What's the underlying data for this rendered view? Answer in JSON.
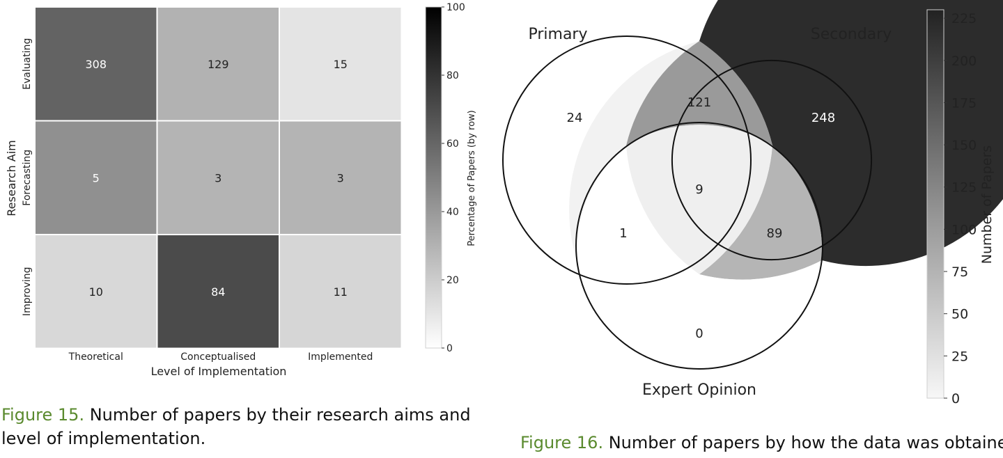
{
  "chart_data": [
    {
      "type": "heatmap",
      "xlabel": "Level of Implementation",
      "ylabel": "Research Aim",
      "x_categories": [
        "Theoretical",
        "Conceptualised",
        "Implemented"
      ],
      "y_categories": [
        "Evaluating",
        "Forecasting",
        "Improving"
      ],
      "counts": [
        [
          308,
          129,
          15
        ],
        [
          5,
          3,
          3
        ],
        [
          10,
          84,
          11
        ]
      ],
      "row_percent": [
        [
          68.1,
          28.5,
          3.3
        ],
        [
          45.5,
          27.3,
          27.3
        ],
        [
          9.5,
          80.0,
          10.5
        ]
      ],
      "colorbar": {
        "label": "Percentage of Papers (by row)",
        "ticks": [
          0,
          20,
          40,
          60,
          80,
          100
        ],
        "range": [
          0,
          100
        ]
      }
    },
    {
      "type": "venn",
      "sets": [
        "Primary",
        "Secondary",
        "Expert Opinion"
      ],
      "regions": [
        {
          "sets": [
            "Primary"
          ],
          "value": 24
        },
        {
          "sets": [
            "Secondary"
          ],
          "value": 248
        },
        {
          "sets": [
            "Expert Opinion"
          ],
          "value": 0
        },
        {
          "sets": [
            "Primary",
            "Secondary"
          ],
          "value": 121
        },
        {
          "sets": [
            "Primary",
            "Expert Opinion"
          ],
          "value": 1
        },
        {
          "sets": [
            "Secondary",
            "Expert Opinion"
          ],
          "value": 89
        },
        {
          "sets": [
            "Primary",
            "Secondary",
            "Expert Opinion"
          ],
          "value": 9
        }
      ],
      "colorbar": {
        "label": "Number of Papers",
        "ticks": [
          0,
          25,
          50,
          75,
          100,
          125,
          150,
          175,
          200,
          225
        ],
        "range": [
          0,
          230
        ]
      }
    }
  ],
  "captions": [
    {
      "label": "Figure 15.",
      "text": " Number of papers by their research aims and level of implementation."
    },
    {
      "label": "Figure 16.",
      "text": " Number of papers by how the data was obtained."
    }
  ]
}
